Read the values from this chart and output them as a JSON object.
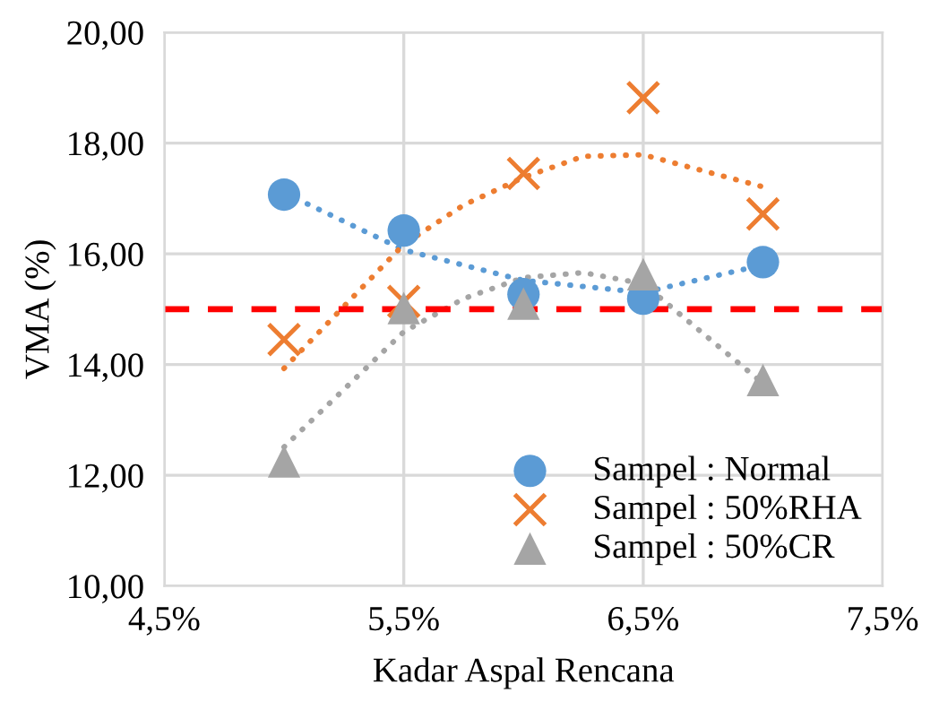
{
  "chart_data": {
    "type": "scatter",
    "xlabel": "Kadar Aspal Rencana",
    "ylabel": "VMA (%)",
    "xlim": [
      4.5,
      7.5
    ],
    "xticks": [
      {
        "value": 4.5,
        "label": "4,5%"
      },
      {
        "value": 5.5,
        "label": "5,5%"
      },
      {
        "value": 6.5,
        "label": "6,5%"
      },
      {
        "value": 7.5,
        "label": "7,5%"
      }
    ],
    "ylim": [
      10,
      20
    ],
    "yticks": [
      {
        "value": 10,
        "label": "10,00"
      },
      {
        "value": 12,
        "label": "12,00"
      },
      {
        "value": 14,
        "label": "14,00"
      },
      {
        "value": 16,
        "label": "16,00"
      },
      {
        "value": 18,
        "label": "18,00"
      },
      {
        "value": 20,
        "label": "20,00"
      }
    ],
    "grid": true,
    "legend": "bottom right",
    "series": [
      {
        "type": "line",
        "color": "#5b9bd5",
        "line_style": "dotted",
        "marker": "none",
        "x": [
          5.05,
          5.5,
          6.0,
          6.5,
          7.0
        ],
        "values": [
          17.0,
          16.07,
          15.52,
          15.3,
          15.8
        ]
      },
      {
        "type": "line",
        "color": "#ed7d31",
        "line_style": "dotted",
        "marker": "none",
        "x": [
          5.0,
          5.5,
          5.75,
          6.0,
          6.25,
          6.5,
          7.0
        ],
        "values": [
          13.93,
          16.17,
          16.88,
          17.38,
          17.76,
          17.79,
          17.21
        ]
      },
      {
        "type": "line",
        "color": "#a5a5a5",
        "line_style": "dotted",
        "marker": "none",
        "x": [
          5.0,
          5.5,
          5.75,
          6.0,
          6.25,
          6.5,
          7.0
        ],
        "values": [
          12.51,
          14.59,
          15.19,
          15.57,
          15.66,
          15.46,
          13.66
        ]
      },
      {
        "name": "Sampel : Normal",
        "color": "#5b9bd5",
        "marker": "circle",
        "x": [
          5.0,
          5.5,
          6.0,
          6.5,
          7.0
        ],
        "values": [
          17.07,
          16.42,
          15.27,
          15.19,
          15.85
        ]
      },
      {
        "name": "Sampel : 50%RHA",
        "color": "#ed7d31",
        "marker": "cross",
        "x": [
          5.0,
          5.5,
          6.0,
          6.5,
          7.0
        ],
        "values": [
          14.45,
          15.14,
          17.45,
          18.82,
          16.72
        ]
      },
      {
        "name": "Sampel : 50%CR",
        "color": "#a5a5a5",
        "marker": "triangle",
        "x": [
          5.0,
          5.5,
          6.0,
          6.5,
          7.0
        ],
        "values": [
          12.25,
          15.02,
          15.1,
          15.63,
          13.72
        ]
      }
    ],
    "ref_lines": [
      {
        "axis": "y",
        "value": 15,
        "color": "#ff0000",
        "line_style": "dashed"
      }
    ]
  }
}
